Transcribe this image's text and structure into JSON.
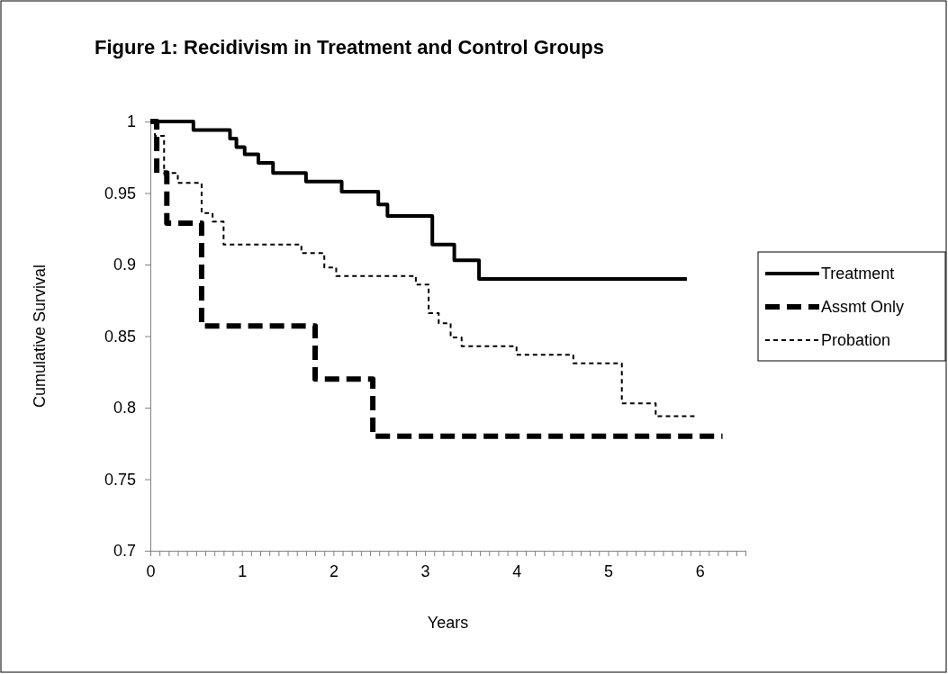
{
  "chart_data": {
    "type": "step",
    "title": "Figure 1: Recidivism in Treatment and Control Groups",
    "xlabel": "Years",
    "ylabel": "Cumulative Survival",
    "xlim": [
      0,
      6.5
    ],
    "ylim": [
      0.7,
      1
    ],
    "xticks": [
      0,
      {
        "value": 0.1,
        "label": null
      },
      {
        "value": 0.2,
        "label": null
      },
      {
        "value": 0.3,
        "label": null
      },
      {
        "value": 0.4,
        "label": null
      },
      {
        "value": 0.5,
        "label": null
      },
      {
        "value": 0.6,
        "label": null
      },
      {
        "value": 0.7,
        "label": null
      },
      {
        "value": 0.8,
        "label": null
      },
      {
        "value": 0.9,
        "label": null
      },
      1,
      {
        "value": 1.1,
        "label": null
      },
      {
        "value": 1.2,
        "label": null
      },
      {
        "value": 1.3,
        "label": null
      },
      {
        "value": 1.4,
        "label": null
      },
      {
        "value": 1.5,
        "label": null
      },
      {
        "value": 1.6,
        "label": null
      },
      {
        "value": 1.7,
        "label": null
      },
      {
        "value": 1.8,
        "label": null
      },
      {
        "value": 1.9,
        "label": null
      },
      2,
      {
        "value": 2.1,
        "label": null
      },
      {
        "value": 2.2,
        "label": null
      },
      {
        "value": 2.3,
        "label": null
      },
      {
        "value": 2.4,
        "label": null
      },
      {
        "value": 2.5,
        "label": null
      },
      {
        "value": 2.6,
        "label": null
      },
      {
        "value": 2.7,
        "label": null
      },
      {
        "value": 2.8,
        "label": null
      },
      {
        "value": 2.9,
        "label": null
      },
      3,
      {
        "value": 3.1,
        "label": null
      },
      {
        "value": 3.2,
        "label": null
      },
      {
        "value": 3.3,
        "label": null
      },
      {
        "value": 3.4,
        "label": null
      },
      {
        "value": 3.5,
        "label": null
      },
      {
        "value": 3.6,
        "label": null
      },
      {
        "value": 3.7,
        "label": null
      },
      {
        "value": 3.8,
        "label": null
      },
      {
        "value": 3.9,
        "label": null
      },
      4,
      {
        "value": 4.1,
        "label": null
      },
      {
        "value": 4.2,
        "label": null
      },
      {
        "value": 4.3,
        "label": null
      },
      {
        "value": 4.4,
        "label": null
      },
      {
        "value": 4.5,
        "label": null
      },
      {
        "value": 4.6,
        "label": null
      },
      {
        "value": 4.7,
        "label": null
      },
      {
        "value": 4.8,
        "label": null
      },
      {
        "value": 4.9,
        "label": null
      },
      5,
      {
        "value": 5.1,
        "label": null
      },
      {
        "value": 5.2,
        "label": null
      },
      {
        "value": 5.3,
        "label": null
      },
      {
        "value": 5.4,
        "label": null
      },
      {
        "value": 5.5,
        "label": null
      },
      {
        "value": 5.6,
        "label": null
      },
      {
        "value": 5.7,
        "label": null
      },
      {
        "value": 5.8,
        "label": null
      },
      {
        "value": 5.9,
        "label": null
      },
      6,
      {
        "value": 6.1,
        "label": null
      },
      {
        "value": 6.2,
        "label": null
      },
      {
        "value": 6.3,
        "label": null
      },
      {
        "value": 6.4,
        "label": null
      },
      {
        "value": 6.5,
        "label": null
      }
    ],
    "yticks": [
      0.7,
      0.75,
      0.8,
      0.85,
      0.9,
      0.95,
      1
    ],
    "legend": "right",
    "grid": false,
    "marker": "none",
    "series": [
      {
        "name": "Treatment",
        "color": "#000000",
        "line_style": "solid",
        "x": [
          0,
          0.47,
          0.87,
          0.94,
          1.03,
          1.18,
          1.34,
          1.7,
          2.09,
          2.49,
          2.59,
          3.08,
          3.32,
          3.59,
          5.86
        ],
        "values": [
          1,
          0.994,
          0.988,
          0.982,
          0.977,
          0.971,
          0.964,
          0.958,
          0.951,
          0.942,
          0.934,
          0.914,
          0.903,
          0.89,
          0.89
        ]
      },
      {
        "name": "Assmt Only",
        "color": "#000000",
        "line_style": "dashed",
        "x": [
          0,
          0.07,
          0.18,
          0.56,
          1.8,
          2.43,
          6.25
        ],
        "values": [
          1,
          0.964,
          0.929,
          0.857,
          0.82,
          0.78,
          0.78
        ]
      },
      {
        "name": "Probation",
        "color": "#000000",
        "line_style": "dotted",
        "x": [
          0,
          0.05,
          0.15,
          0.3,
          0.56,
          0.68,
          0.8,
          1.65,
          1.9,
          2.03,
          2.9,
          3.04,
          3.15,
          3.28,
          3.4,
          4.0,
          4.62,
          5.15,
          5.52,
          5.97
        ],
        "values": [
          1,
          0.99,
          0.964,
          0.957,
          0.936,
          0.93,
          0.914,
          0.908,
          0.898,
          0.892,
          0.886,
          0.866,
          0.859,
          0.849,
          0.843,
          0.837,
          0.831,
          0.803,
          0.794,
          0.794
        ]
      }
    ]
  }
}
